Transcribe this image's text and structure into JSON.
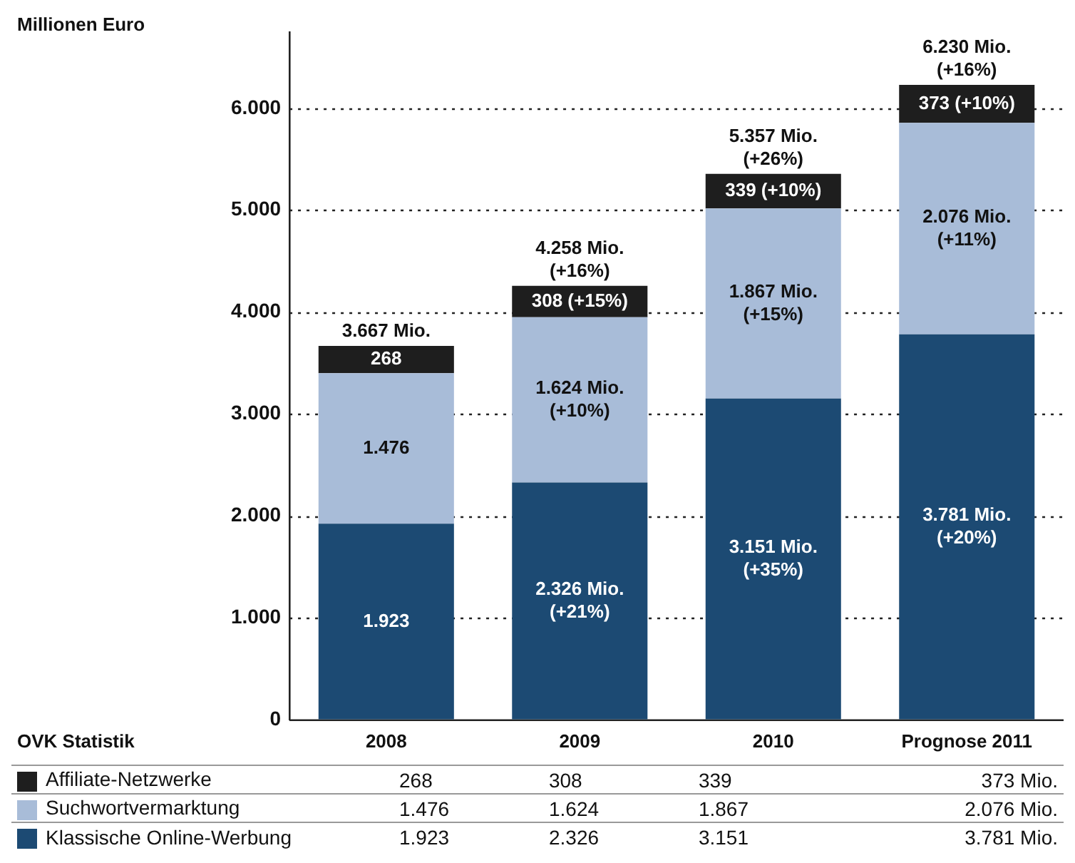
{
  "chart_data": {
    "type": "bar",
    "stacked": true,
    "ylabel": "Millionen Euro",
    "categories": [
      "2008",
      "2009",
      "2010",
      "Prognose 2011"
    ],
    "series": [
      {
        "name": "Klassische Online-Werbung",
        "color": "#1c4a73",
        "values": [
          1923,
          2326,
          3151,
          3781
        ],
        "value_labels": [
          "1.923",
          "2.326 Mio.\n(+21%)",
          "3.151 Mio.\n(+35%)",
          "3.781 Mio.\n(+20%)"
        ]
      },
      {
        "name": "Suchwortvermarktung",
        "color": "#a8bcd8",
        "values": [
          1476,
          1624,
          1867,
          2076
        ],
        "value_labels": [
          "1.476",
          "1.624 Mio.\n(+10%)",
          "1.867 Mio.\n(+15%)",
          "2.076 Mio.\n(+11%)"
        ]
      },
      {
        "name": "Affiliate-Netzwerke",
        "color": "#1e1e1e",
        "values": [
          268,
          308,
          339,
          373
        ],
        "value_labels": [
          "268",
          "308 (+15%)",
          "339 (+10%)",
          "373 (+10%)"
        ]
      }
    ],
    "totals": [
      "3.667 Mio.",
      "4.258 Mio.\n(+16%)",
      "5.357 Mio.\n(+26%)",
      "6.230 Mio.\n(+16%)"
    ],
    "ylim": [
      0,
      6750
    ],
    "yticks": [
      {
        "value": 0,
        "label": "0"
      },
      {
        "value": 1000,
        "label": "1.000"
      },
      {
        "value": 2000,
        "label": "2.000"
      },
      {
        "value": 3000,
        "label": "3.000"
      },
      {
        "value": 4000,
        "label": "4.000"
      },
      {
        "value": 5000,
        "label": "5.000"
      },
      {
        "value": 6000,
        "label": "6.000"
      }
    ],
    "grid": "y",
    "legend": "bottom",
    "data_labels": true,
    "annotations": [
      "OVK Statistik",
      "268",
      "308",
      "339",
      "373 Mio.",
      "1.476",
      "1.624",
      "1.867",
      "2.076 Mio.",
      "1.923",
      "2.326",
      "3.151",
      "3.781 Mio."
    ]
  }
}
